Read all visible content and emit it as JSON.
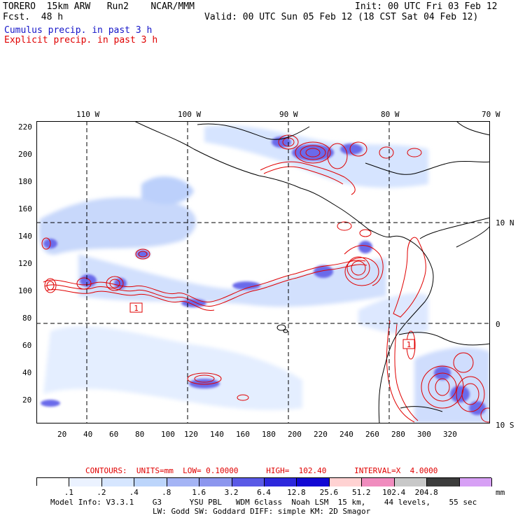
{
  "header": {
    "model_line": "TORERO  15km ARW   Run2    NCAR/MMM",
    "fcst_line": "Fcst.  48 h",
    "init_line": "Init: 00 UTC Fri 03 Feb 12",
    "valid_line": "Valid: 00 UTC Sun 05 Feb 12 (18 CST Sat 04 Feb 12)",
    "cumulus_label": "Cumulus precip. in past 3 h",
    "explicit_label": "Explicit precip. in past 3 h"
  },
  "map": {
    "top_lon_labels": [
      "110 W",
      "100 W",
      "90 W",
      "80 W",
      "70 W"
    ],
    "right_lat_labels": [
      "10 N",
      "0",
      "10 S"
    ],
    "left_y_ticks": [
      "220",
      "200",
      "180",
      "160",
      "140",
      "120",
      "100",
      "80",
      "60",
      "40",
      "20"
    ],
    "bottom_x_ticks": [
      "20",
      "40",
      "60",
      "80",
      "100",
      "120",
      "140",
      "160",
      "180",
      "200",
      "220",
      "240",
      "260",
      "280",
      "300",
      "320"
    ],
    "box_labels": [
      "1",
      "1"
    ],
    "colors": {
      "cumulus": "#1515c8",
      "explicit": "#e00000",
      "coast": "#000000",
      "grid": "#000000"
    }
  },
  "contours_line": "CONTOURS:  UNITS=mm  LOW= 0.10000      HIGH=  102.40      INTERVAL=X  4.0000",
  "legend": {
    "levels": [
      ".1",
      ".2",
      ".4",
      ".8",
      "1.6",
      "3.2",
      "6.4",
      "12.8",
      "25.6",
      "51.2",
      "102.4",
      "204.8"
    ],
    "units": "mm",
    "colors": [
      "#ffffff",
      "#ebf2ff",
      "#d6e6ff",
      "#bcd5fb",
      "#a4b4f5",
      "#8c96ee",
      "#5a5ae6",
      "#2d28dc",
      "#1208d4",
      "#ffd2d2",
      "#f08cbe",
      "#c8c8c8",
      "#3c3c3c",
      "#d7a0f5"
    ]
  },
  "footer": {
    "line1": "Model Info: V3.3.1    G3      YSU PBL   WDM 6class  Noah LSM  15 km,    44 levels,    55 sec",
    "line2": "LW: Godd SW: Goddard DIFF: simple KM: 2D Smagor"
  }
}
